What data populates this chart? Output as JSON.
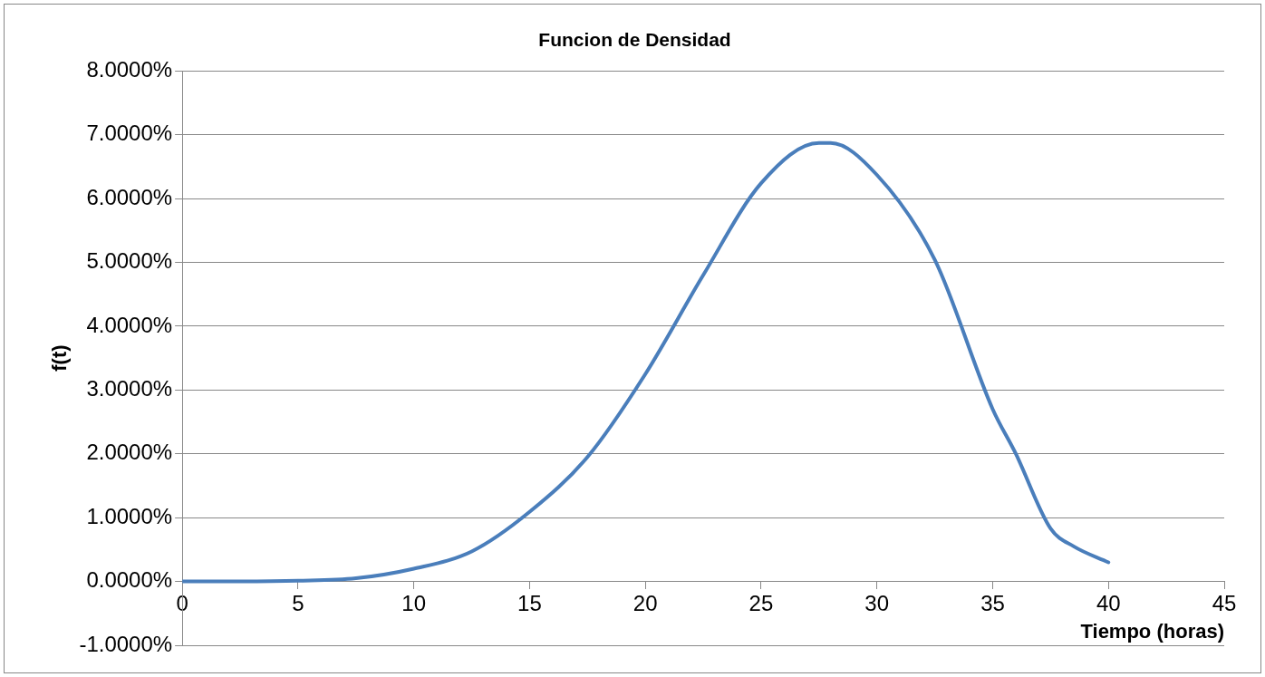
{
  "chart_data": {
    "type": "line",
    "title": "Funcion de Densidad",
    "xlabel": "Tiempo (horas)",
    "ylabel": "f(t)",
    "series": [
      {
        "color": "#4a7ebb",
        "x": [
          0,
          2.5,
          5,
          7.5,
          10,
          12.5,
          15,
          17.5,
          20,
          22.5,
          25,
          27.5,
          28,
          30,
          32.5,
          35,
          36,
          37.5,
          38.5,
          40
        ],
        "values": [
          0,
          0,
          0.01,
          0.05,
          0.2,
          0.47,
          1.09,
          1.95,
          3.25,
          4.8,
          6.24,
          6.87,
          6.87,
          6.37,
          5.04,
          2.7,
          2.0,
          0.83,
          0.55,
          0.3
        ]
      }
    ],
    "xlim": [
      0,
      45
    ],
    "xticks": [
      0,
      5,
      10,
      15,
      20,
      25,
      30,
      35,
      40,
      45
    ],
    "ylim": [
      -1,
      8
    ],
    "yticks": [
      {
        "value": -1,
        "label": "-1.0000%"
      },
      {
        "value": 0,
        "label": "0.0000%"
      },
      {
        "value": 1,
        "label": "1.0000%"
      },
      {
        "value": 2,
        "label": "2.0000%"
      },
      {
        "value": 3,
        "label": "3.0000%"
      },
      {
        "value": 4,
        "label": "4.0000%"
      },
      {
        "value": 5,
        "label": "5.0000%"
      },
      {
        "value": 6,
        "label": "6.0000%"
      },
      {
        "value": 7,
        "label": "7.0000%"
      },
      {
        "value": 8,
        "label": "8.0000%"
      }
    ],
    "grid": "y",
    "legend": false,
    "marker": "none",
    "line_style": "solid"
  }
}
